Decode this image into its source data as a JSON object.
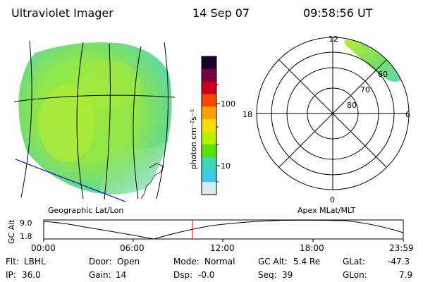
{
  "header": {
    "instrument": "Ultraviolet Imager",
    "date": "14 Sep 07",
    "time": "09:58:56 UT"
  },
  "map_panel": {
    "caption": "Geographic Lat/Lon"
  },
  "colorbar": {
    "unit_label": "photon cm⁻²s⁻¹",
    "tick_labels": [
      "100",
      "10"
    ],
    "colors": [
      "#1a0030",
      "#7a0040",
      "#c80018",
      "#f04a00",
      "#ffa000",
      "#f6e000",
      "#b8f000",
      "#5ce000",
      "#3cd8b8",
      "#40c8e8",
      "#d8ecf0"
    ]
  },
  "polar_panel": {
    "caption": "Apex MLat/MLT",
    "mlt_labels": {
      "top": "12",
      "left": "18",
      "right": "6",
      "bottom": "0"
    },
    "lat_labels": [
      "80",
      "70",
      "60"
    ]
  },
  "altitude_plot": {
    "axis_label": "GC Alt",
    "y_ticks": [
      "9.0",
      "1.8"
    ],
    "x_ticks": [
      "00:00",
      "06:00",
      "12:00",
      "18:00",
      "23:59"
    ],
    "current_time_marker": "09:58:56"
  },
  "status": {
    "filter": {
      "label": "Flt:",
      "value": "LBHL"
    },
    "ip": {
      "label": "IP:",
      "value": "36.0"
    },
    "door": {
      "label": "Door:",
      "value": "Open"
    },
    "gain": {
      "label": "Gain:",
      "value": "14"
    },
    "mode": {
      "label": "Mode:",
      "value": "Normal"
    },
    "dsp": {
      "label": "Dsp:",
      "value": "-0.0"
    },
    "gc_alt": {
      "label": "GC Alt:",
      "value": "5.4 Re"
    },
    "seq": {
      "label": "Seq:",
      "value": "39"
    },
    "glat": {
      "label": "GLat:",
      "value": "-47.3"
    },
    "glon": {
      "label": "GLon:",
      "value": "7.9"
    }
  }
}
